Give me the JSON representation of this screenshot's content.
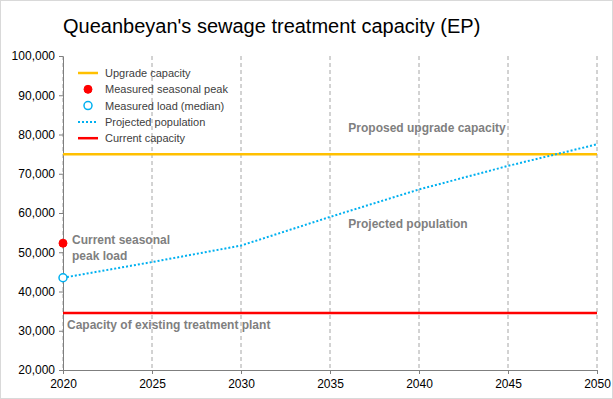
{
  "chart_data": {
    "type": "line",
    "title": "Queanbeyan's sewage treatment capacity (EP)",
    "xlim": [
      2020,
      2050
    ],
    "xticks": [
      2020,
      2025,
      2030,
      2035,
      2040,
      2045,
      2050
    ],
    "ylim": [
      20000,
      100000
    ],
    "yticks": [
      {
        "value": 20000,
        "label": "20,000"
      },
      {
        "value": 30000,
        "label": "30,000"
      },
      {
        "value": 40000,
        "label": "40,000"
      },
      {
        "value": 50000,
        "label": "50,000"
      },
      {
        "value": 60000,
        "label": "60,000"
      },
      {
        "value": 70000,
        "label": "70,000"
      },
      {
        "value": 80000,
        "label": "80,000"
      },
      {
        "value": 90000,
        "label": "90,000"
      },
      {
        "value": 100000,
        "label": "100,000"
      }
    ],
    "grid": "x",
    "legend": "upper left",
    "series": [
      {
        "name": "Upgrade capacity",
        "type": "line",
        "color": "#ffc000",
        "line_style": "solid",
        "x": [
          2020,
          2050
        ],
        "values": [
          75000,
          75000
        ]
      },
      {
        "name": "Measured seasonal peak",
        "type": "scatter",
        "color": "#ff0000",
        "marker": "circle",
        "x": [
          2020
        ],
        "values": [
          52300
        ]
      },
      {
        "name": "Measured load (median)",
        "type": "scatter",
        "color": "#00b0f0",
        "marker": "circle-open",
        "x": [
          2020
        ],
        "values": [
          43500
        ]
      },
      {
        "name": "Projected population",
        "type": "line",
        "color": "#00b0f0",
        "line_style": "dotted",
        "x": [
          2020,
          2025,
          2030,
          2035,
          2040,
          2045,
          2050
        ],
        "values": [
          43500,
          47500,
          51700,
          59000,
          66000,
          72000,
          77500
        ]
      },
      {
        "name": "Current capacity",
        "type": "line",
        "color": "#ff0000",
        "line_style": "solid",
        "x": [
          2020,
          2050
        ],
        "values": [
          34500,
          34500
        ]
      }
    ],
    "annotations": [
      "Proposed upgrade capacity",
      "Projected population",
      "Current seasonal\npeak load",
      "Capacity of existing treatment plant"
    ]
  }
}
